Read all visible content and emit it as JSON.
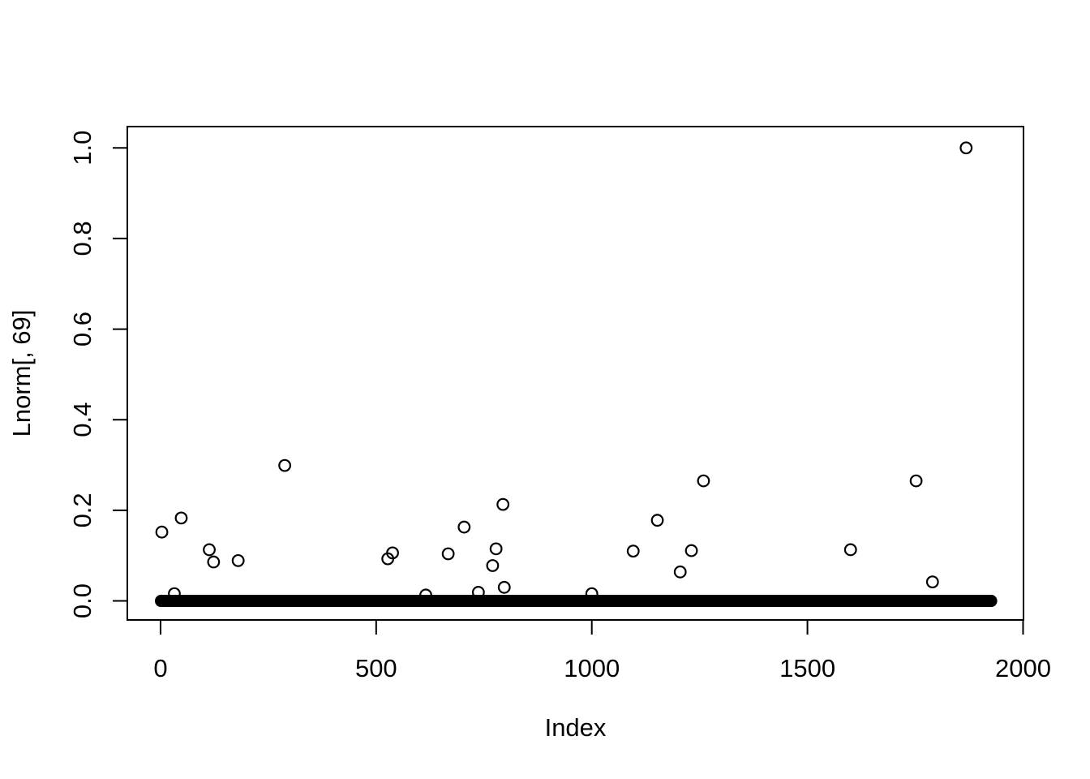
{
  "figure": {
    "background": "#ffffff",
    "foreground": "#000000"
  },
  "chart_data": {
    "type": "scatter",
    "title": "",
    "xlabel": "Index",
    "ylabel": "Lnorm[, 69]",
    "marker": "open-circle",
    "grid": false,
    "legend": null,
    "x_ticks": [
      0,
      500,
      1000,
      1500,
      2000
    ],
    "x_tick_labels": [
      "0",
      "500",
      "1000",
      "1500",
      "2000"
    ],
    "y_ticks": [
      0.0,
      0.2,
      0.4,
      0.6,
      0.8,
      1.0
    ],
    "y_tick_labels": [
      "0.0",
      "0.2",
      "0.4",
      "0.6",
      "0.8",
      "1.0"
    ],
    "xlim": [
      -77,
      2001
    ],
    "ylim": [
      -0.042,
      1.047
    ],
    "zero_band": {
      "x_start": 1,
      "x_end": 1926,
      "y": 0,
      "note": "approx. 1900 overlapping open circles with value ~0 forming a solid band"
    },
    "outliers": [
      [
        3,
        0.152
      ],
      [
        32,
        0.016
      ],
      [
        48,
        0.183
      ],
      [
        113,
        0.113
      ],
      [
        123,
        0.086
      ],
      [
        180,
        0.089
      ],
      [
        288,
        0.299
      ],
      [
        527,
        0.093
      ],
      [
        538,
        0.106
      ],
      [
        615,
        0.013
      ],
      [
        667,
        0.104
      ],
      [
        704,
        0.163
      ],
      [
        737,
        0.019
      ],
      [
        770,
        0.078
      ],
      [
        778,
        0.115
      ],
      [
        794,
        0.213
      ],
      [
        797,
        0.03
      ],
      [
        1000,
        0.016
      ],
      [
        1096,
        0.11
      ],
      [
        1152,
        0.178
      ],
      [
        1205,
        0.064
      ],
      [
        1231,
        0.111
      ],
      [
        1259,
        0.265
      ],
      [
        1600,
        0.113
      ],
      [
        1752,
        0.265
      ],
      [
        1790,
        0.042
      ],
      [
        1868,
        1.0
      ]
    ]
  }
}
